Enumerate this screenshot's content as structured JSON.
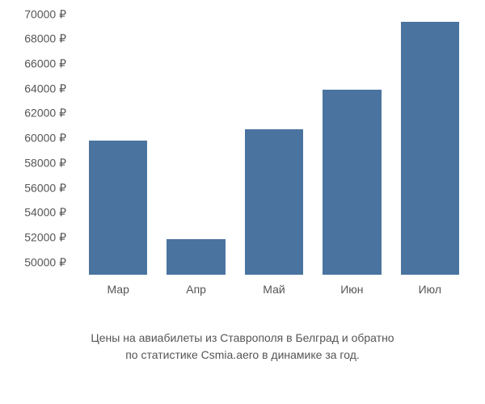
{
  "chart": {
    "type": "bar",
    "categories": [
      "Мар",
      "Апр",
      "Май",
      "Июн",
      "Июл"
    ],
    "values": [
      59800,
      51900,
      60700,
      63900,
      69400
    ],
    "bar_color": "#4a73a0",
    "y_ticks": [
      50000,
      52000,
      54000,
      56000,
      58000,
      60000,
      62000,
      64000,
      66000,
      68000,
      70000
    ],
    "y_tick_labels": [
      "50000 ₽",
      "52000 ₽",
      "54000 ₽",
      "56000 ₽",
      "58000 ₽",
      "60000 ₽",
      "62000 ₽",
      "64000 ₽",
      "66000 ₽",
      "68000 ₽",
      "70000 ₽"
    ],
    "ylim": [
      49000,
      70500
    ],
    "bar_width_pct": 15,
    "bar_gap_pct": 5,
    "background_color": "#ffffff",
    "text_color": "#555555",
    "label_fontsize": 14
  },
  "caption": {
    "line1": "Цены на авиабилеты из Ставрополя в Белград и обратно",
    "line2": "по статистике Csmia.aero в динамике за год."
  }
}
